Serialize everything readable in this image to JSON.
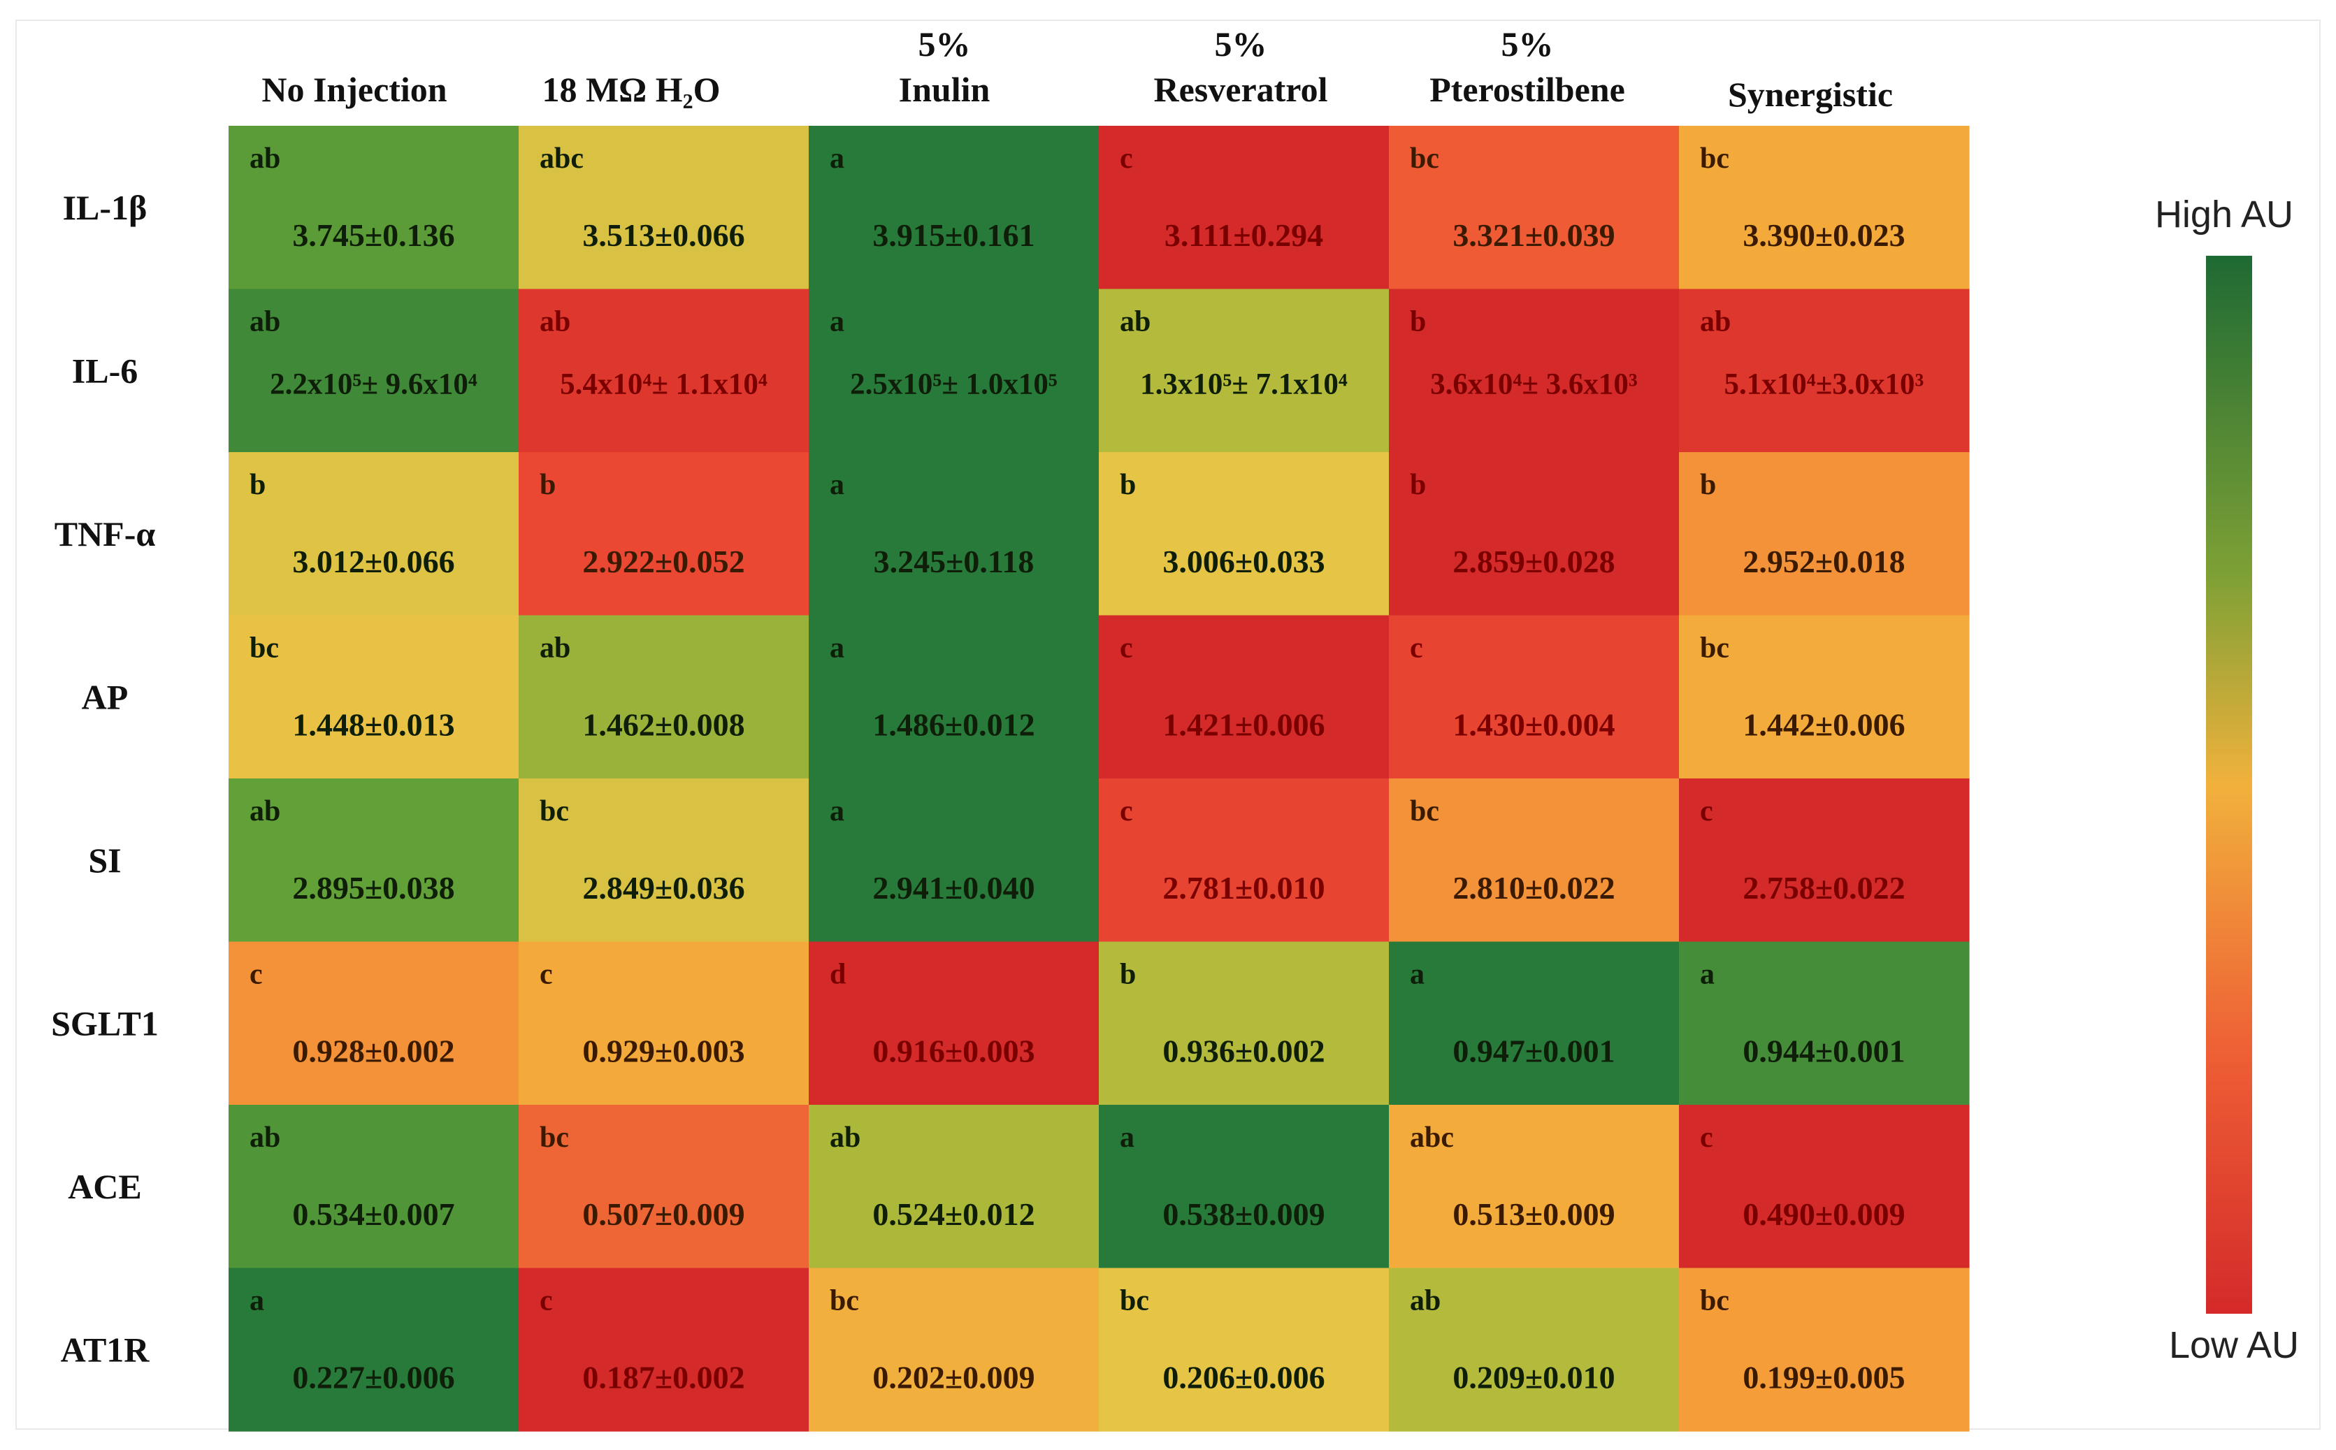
{
  "chart_data": {
    "type": "heatmap",
    "columns": [
      "No Injection",
      "18 MΩ H₂O",
      "5% Inulin",
      "5% Resveratrol",
      "5% Pterostilbene",
      "Synergistic"
    ],
    "rows": [
      "IL-1β",
      "IL-6",
      "TNF-α",
      "AP",
      "SI",
      "SGLT1",
      "ACE",
      "AT1R"
    ],
    "cells": [
      [
        {
          "sig": "ab",
          "value": "3.745±0.136",
          "level": 0.82
        },
        {
          "sig": "abc",
          "value": "3.513±0.066",
          "level": 0.52
        },
        {
          "sig": "a",
          "value": "3.915±0.161",
          "level": 1.0
        },
        {
          "sig": "c",
          "value": "3.111±0.294",
          "level": 0.0
        },
        {
          "sig": "bc",
          "value": "3.321±0.039",
          "level": 0.18
        },
        {
          "sig": "bc",
          "value": "3.390±0.023",
          "level": 0.33
        }
      ],
      [
        {
          "sig": "ab",
          "value": "2.2x10⁵± 9.6x10⁴",
          "level": 0.92
        },
        {
          "sig": "ab",
          "value": "5.4x10⁴± 1.1x10⁴",
          "level": 0.06
        },
        {
          "sig": "a",
          "value": "2.5x10⁵± 1.0x10⁵",
          "level": 1.0
        },
        {
          "sig": "ab",
          "value": "1.3x10⁵± 7.1x10⁴",
          "level": 0.62
        },
        {
          "sig": "b",
          "value": "3.6x10⁴± 3.6x10³",
          "level": 0.0
        },
        {
          "sig": "ab",
          "value": "5.1x10⁴±3.0x10³",
          "level": 0.06
        }
      ],
      [
        {
          "sig": "b",
          "value": "3.012±0.066",
          "level": 0.5
        },
        {
          "sig": "b",
          "value": "2.922±0.052",
          "level": 0.14
        },
        {
          "sig": "a",
          "value": "3.245±0.118",
          "level": 1.0
        },
        {
          "sig": "b",
          "value": "3.006±0.033",
          "level": 0.48
        },
        {
          "sig": "b",
          "value": "2.859±0.028",
          "level": 0.0
        },
        {
          "sig": "b",
          "value": "2.952±0.018",
          "level": 0.28
        }
      ],
      [
        {
          "sig": "bc",
          "value": "1.448±0.013",
          "level": 0.46
        },
        {
          "sig": "ab",
          "value": "1.462±0.008",
          "level": 0.68
        },
        {
          "sig": "a",
          "value": "1.486±0.012",
          "level": 1.0
        },
        {
          "sig": "c",
          "value": "1.421±0.006",
          "level": 0.0
        },
        {
          "sig": "c",
          "value": "1.430±0.004",
          "level": 0.12
        },
        {
          "sig": "bc",
          "value": "1.442±0.006",
          "level": 0.34
        }
      ],
      [
        {
          "sig": "ab",
          "value": "2.895±0.038",
          "level": 0.8
        },
        {
          "sig": "bc",
          "value": "2.849±0.036",
          "level": 0.52
        },
        {
          "sig": "a",
          "value": "2.941±0.040",
          "level": 1.0
        },
        {
          "sig": "c",
          "value": "2.781±0.010",
          "level": 0.12
        },
        {
          "sig": "bc",
          "value": "2.810±0.022",
          "level": 0.28
        },
        {
          "sig": "c",
          "value": "2.758±0.022",
          "level": 0.0
        }
      ],
      [
        {
          "sig": "c",
          "value": "0.928±0.002",
          "level": 0.28
        },
        {
          "sig": "c",
          "value": "0.929±0.003",
          "level": 0.33
        },
        {
          "sig": "d",
          "value": "0.916±0.003",
          "level": 0.0
        },
        {
          "sig": "b",
          "value": "0.936±0.002",
          "level": 0.62
        },
        {
          "sig": "a",
          "value": "0.947±0.001",
          "level": 1.0
        },
        {
          "sig": "a",
          "value": "0.944±0.001",
          "level": 0.9
        }
      ],
      [
        {
          "sig": "ab",
          "value": "0.534±0.007",
          "level": 0.86
        },
        {
          "sig": "bc",
          "value": "0.507±0.009",
          "level": 0.2
        },
        {
          "sig": "ab",
          "value": "0.524±0.012",
          "level": 0.64
        },
        {
          "sig": "a",
          "value": "0.538±0.009",
          "level": 1.0
        },
        {
          "sig": "abc",
          "value": "0.513±0.009",
          "level": 0.34
        },
        {
          "sig": "c",
          "value": "0.490±0.009",
          "level": 0.0
        }
      ],
      [
        {
          "sig": "a",
          "value": "0.227±0.006",
          "level": 1.0
        },
        {
          "sig": "c",
          "value": "0.187±0.002",
          "level": 0.0
        },
        {
          "sig": "bc",
          "value": "0.202±0.009",
          "level": 0.36
        },
        {
          "sig": "bc",
          "value": "0.206±0.006",
          "level": 0.48
        },
        {
          "sig": "ab",
          "value": "0.209±0.010",
          "level": 0.62
        },
        {
          "sig": "bc",
          "value": "0.199±0.005",
          "level": 0.3
        }
      ]
    ],
    "legend": {
      "high_label": "High AU",
      "low_label": "Low AU",
      "colors": [
        "#d42a2a",
        "#ef4a35",
        "#f5ab3a",
        "#e5c44a",
        "#8fa832",
        "#1e6a34"
      ]
    }
  }
}
